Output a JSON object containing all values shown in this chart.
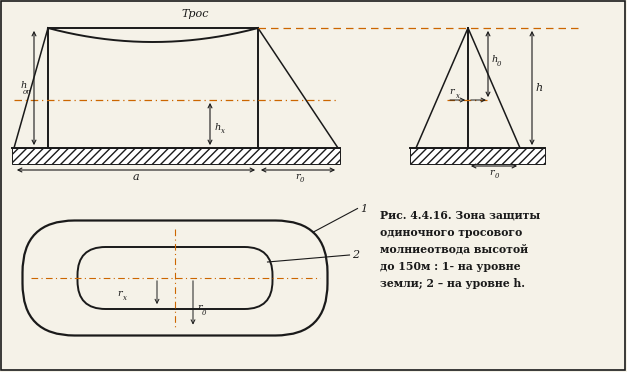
{
  "bg_color": "#f5f2e8",
  "line_color": "#1a1a1a",
  "dash_color": "#cc6600",
  "title_tros": "Трос",
  "caption_line1": "Рис. 4.4.16. Зона защиты",
  "caption_line2": "одиночного тросового",
  "caption_line3": "молниеотвода высотой",
  "caption_line4": "до 150м : 1- на уровне",
  "caption_line5": "земли; 2 – на уровне h."
}
